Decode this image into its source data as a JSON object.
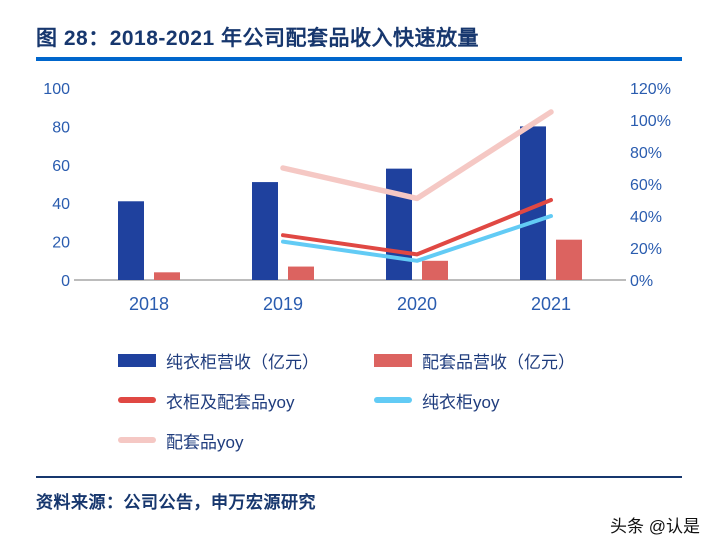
{
  "page": {
    "title": "图 28：2018-2021 年公司配套品收入快速放量",
    "source": "资料来源：公司公告，申万宏源研究",
    "watermark": "头条 @认是"
  },
  "colors": {
    "navy_text": "#17376E",
    "title_underline": "#0066CC",
    "axis_text": "#2A5CAF",
    "axis_line": "#A6A6A6",
    "bar_blue": "#1F419E",
    "bar_red": "#DC6360",
    "line_red": "#E04843",
    "line_lightblue": "#62CBF5",
    "line_pink": "#F5C8C4"
  },
  "chart_data": {
    "type": "combo",
    "title": "图 28：2018-2021 年公司配套品收入快速放量",
    "categories": [
      "2018",
      "2019",
      "2020",
      "2021"
    ],
    "bar_series": [
      {
        "name": "纯衣柜营收（亿元）",
        "axis": "left",
        "color_key": "bar_blue",
        "values": [
          41,
          51,
          58,
          80
        ]
      },
      {
        "name": "配套品营收（亿元）",
        "axis": "left",
        "color_key": "bar_red",
        "values": [
          4,
          7,
          10,
          21
        ]
      }
    ],
    "line_series": [
      {
        "name": "配套品yoy",
        "axis": "right",
        "color_key": "line_pink",
        "values": [
          null,
          0.7,
          0.51,
          1.05
        ]
      },
      {
        "name": "衣柜及配套品yoy",
        "axis": "right",
        "color_key": "line_red",
        "values": [
          null,
          0.28,
          0.16,
          0.5
        ]
      },
      {
        "name": "纯衣柜yoy",
        "axis": "right",
        "color_key": "line_lightblue",
        "values": [
          null,
          0.24,
          0.12,
          0.4
        ]
      }
    ],
    "left_axis": {
      "min": 0,
      "max": 100,
      "step": 20,
      "labels": [
        "0",
        "20",
        "40",
        "60",
        "80",
        "100"
      ]
    },
    "right_axis": {
      "min": 0,
      "max": 1.2,
      "step": 0.2,
      "labels": [
        "0%",
        "20%",
        "40%",
        "60%",
        "80%",
        "100%",
        "120%"
      ]
    },
    "grid": false,
    "legend_position": "bottom"
  },
  "legend": [
    {
      "label": "纯衣柜营收（亿元）",
      "swatch": "bar",
      "color_key": "bar_blue"
    },
    {
      "label": "配套品营收（亿元）",
      "swatch": "bar",
      "color_key": "bar_red"
    },
    {
      "label": "衣柜及配套品yoy",
      "swatch": "line",
      "color_key": "line_red"
    },
    {
      "label": "纯衣柜yoy",
      "swatch": "line",
      "color_key": "line_lightblue"
    },
    {
      "label": "配套品yoy",
      "swatch": "line",
      "color_key": "line_pink"
    }
  ]
}
